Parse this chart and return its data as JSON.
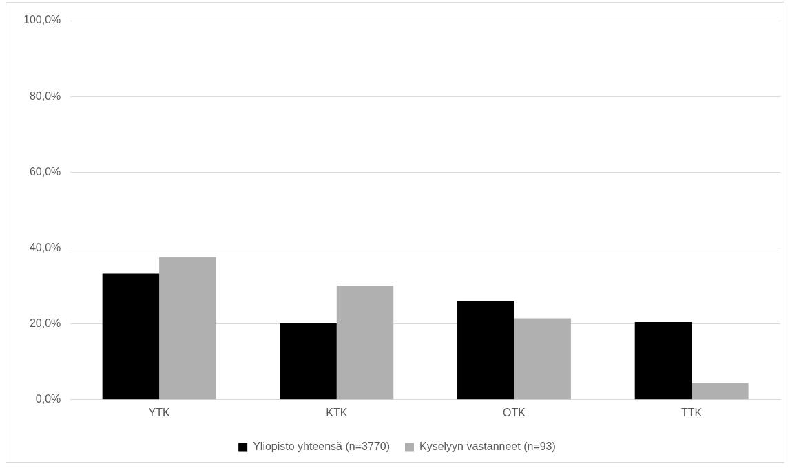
{
  "chart_data": {
    "type": "bar",
    "categories": [
      "YTK",
      "KTK",
      "OTK",
      "TTK"
    ],
    "series": [
      {
        "name": "Yliopisto yhteensä (n=3770)",
        "color": "#000000",
        "values": [
          33.3,
          20.1,
          26.1,
          20.5
        ]
      },
      {
        "name": "Kyselyyn vastanneet (n=93)",
        "color": "#b0b0b0",
        "values": [
          37.6,
          30.1,
          21.5,
          4.3
        ]
      }
    ],
    "ylim": [
      0,
      100
    ],
    "yticks": [
      {
        "value": 0,
        "label": "0,0%"
      },
      {
        "value": 20,
        "label": "20,0%"
      },
      {
        "value": 40,
        "label": "40,0%"
      },
      {
        "value": 60,
        "label": "60,0%"
      },
      {
        "value": 80,
        "label": "80,0%"
      },
      {
        "value": 100,
        "label": "100,0%"
      }
    ],
    "grid": "y",
    "legend": "bottom"
  }
}
